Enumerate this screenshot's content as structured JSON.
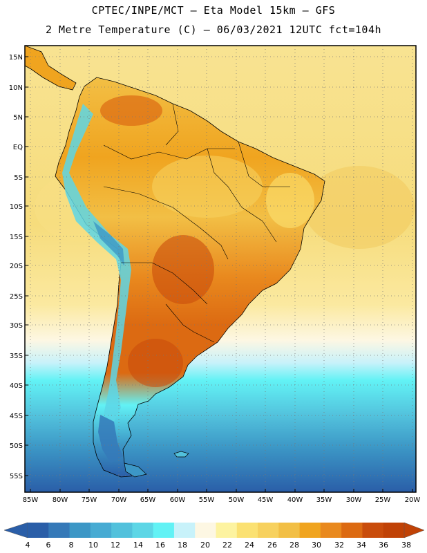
{
  "header": {
    "line1": "CPTEC/INPE/MCT –  Eta Model 15km – GFS",
    "line2": "2 Metre Temperature (C) – 06/03/2021 12UTC fct=104h"
  },
  "axes": {
    "lat_labels": [
      "15N",
      "10N",
      "5N",
      "EQ",
      "5S",
      "10S",
      "15S",
      "20S",
      "25S",
      "30S",
      "35S",
      "40S",
      "45S",
      "50S",
      "55S"
    ],
    "lon_labels": [
      "85W",
      "80W",
      "75W",
      "70W",
      "65W",
      "60W",
      "55W",
      "50W",
      "45W",
      "40W",
      "35W",
      "30W",
      "25W",
      "20W"
    ]
  },
  "legend": {
    "labels": [
      "4",
      "6",
      "8",
      "10",
      "12",
      "14",
      "16",
      "18",
      "20",
      "22",
      "24",
      "26",
      "28",
      "30",
      "32",
      "34",
      "36",
      "38"
    ],
    "colors": [
      "#2a5ea8",
      "#3579b8",
      "#3c97c6",
      "#47abd3",
      "#52c1dc",
      "#5dd6e6",
      "#62f2f5",
      "#c8f2fa",
      "#fdf7e3",
      "#fdf3a0",
      "#fbe172",
      "#f7d15e",
      "#f2bf45",
      "#f0a41f",
      "#e9891e",
      "#dc6a12",
      "#c94c0b",
      "#c04206"
    ]
  },
  "colors": {
    "ocean_tropical": "#f6dc7c",
    "ocean_sub": "#fdf7e3",
    "ocean_cool": "#62f2f5",
    "ocean_cold": "#3579b8",
    "land_hot": "#dc6a12",
    "land_warm": "#f0a41f",
    "andes": "#5dd6e6"
  }
}
